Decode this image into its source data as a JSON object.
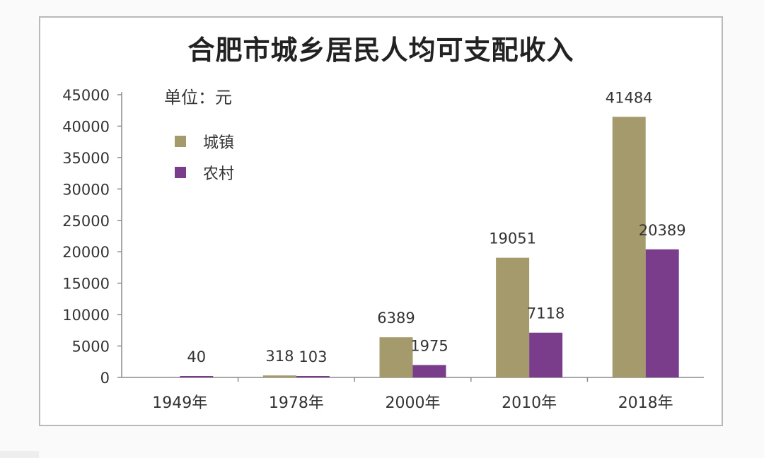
{
  "chart_data": {
    "type": "bar",
    "title": "合肥市城乡居民人均可支配收入",
    "unit_label": "单位：元",
    "categories": [
      "1949年",
      "1978年",
      "2000年",
      "2010年",
      "2018年"
    ],
    "series": [
      {
        "name": "城镇",
        "color": "#a59a6c",
        "values": [
          null,
          318,
          6389,
          19051,
          41484
        ]
      },
      {
        "name": "农村",
        "color": "#7a3d8c",
        "values": [
          40,
          103,
          1975,
          7118,
          20389
        ]
      }
    ],
    "ylim": [
      0,
      45000
    ],
    "yticks": [
      0,
      5000,
      10000,
      15000,
      20000,
      25000,
      30000,
      35000,
      40000,
      45000
    ],
    "grid": false,
    "legend_position": "top-left"
  }
}
